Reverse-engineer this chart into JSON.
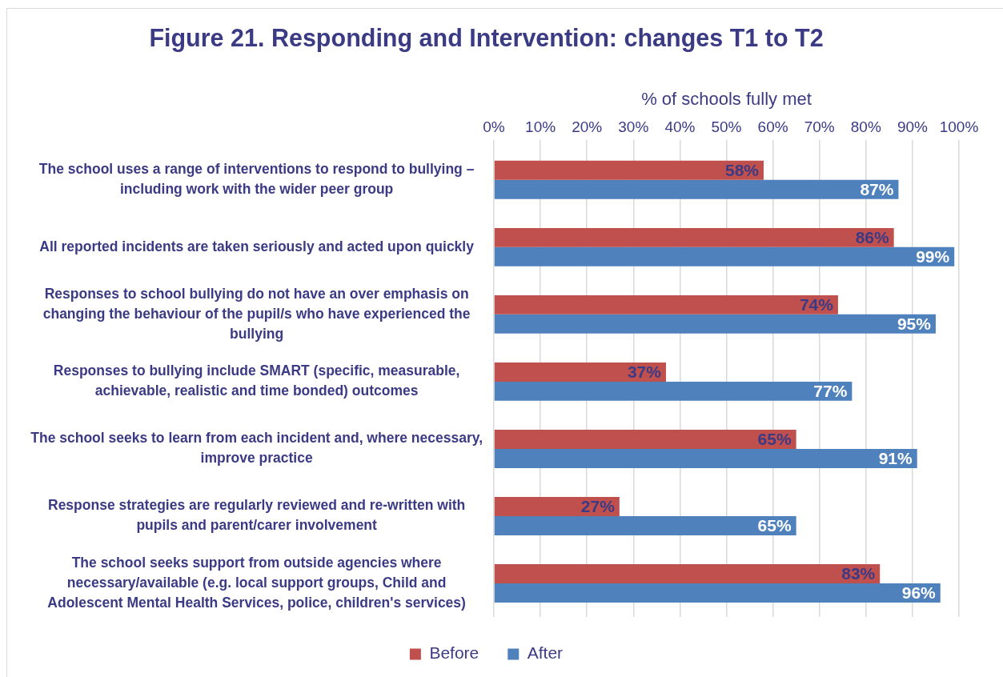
{
  "chart_data": {
    "type": "bar",
    "orientation": "horizontal",
    "title": "Figure 21. Responding and Intervention: changes T1 to T2",
    "xlabel": "% of schools fully met",
    "categories": [
      "The school uses a range of interventions to respond to bullying – including work with the wider peer group",
      "All reported incidents are taken seriously and acted upon quickly",
      "Responses to school bullying do not have an over emphasis on changing the behaviour of the pupil/s who have experienced the bullying",
      "Responses to bullying include SMART (specific, measurable, achievable, realistic and time bonded) outcomes",
      "The school seeks to learn from each incident and, where necessary, improve practice",
      "Response strategies are regularly reviewed and re-written with pupils and parent/carer involvement",
      "The school seeks support from outside agencies where necessary/available (e.g. local support groups, Child and Adolescent Mental Health Services, police, children's services)"
    ],
    "series": [
      {
        "name": "Before",
        "color": "#c0504d",
        "values": [
          58,
          86,
          74,
          37,
          65,
          27,
          83
        ],
        "value_labels": [
          "58%",
          "86%",
          "74%",
          "37%",
          "65%",
          "27%",
          "83%"
        ]
      },
      {
        "name": "After",
        "color": "#4f81bd",
        "values": [
          87,
          99,
          95,
          77,
          91,
          65,
          96
        ],
        "value_labels": [
          "87%",
          "99%",
          "95%",
          "77%",
          "91%",
          "65%",
          "96%"
        ]
      }
    ],
    "xlim": [
      0,
      100
    ],
    "xticks": [
      {
        "value": 0,
        "label": "0%"
      },
      {
        "value": 10,
        "label": "10%"
      },
      {
        "value": 20,
        "label": "20%"
      },
      {
        "value": 30,
        "label": "30%"
      },
      {
        "value": 40,
        "label": "40%"
      },
      {
        "value": 50,
        "label": "50%"
      },
      {
        "value": 60,
        "label": "60%"
      },
      {
        "value": 70,
        "label": "70%"
      },
      {
        "value": 80,
        "label": "80%"
      },
      {
        "value": 90,
        "label": "90%"
      },
      {
        "value": 100,
        "label": "100%"
      }
    ],
    "grid": "x",
    "legend": "bottom"
  }
}
